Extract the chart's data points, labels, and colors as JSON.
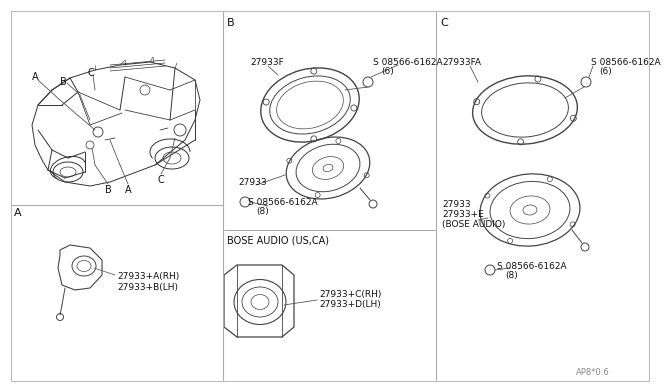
{
  "bg_color": "#ffffff",
  "line_color": "#444444",
  "text_color": "#111111",
  "title_bottom": "AP8*0.6",
  "section_bg": "#f8f8f8",
  "div_color": "#999999",
  "part_labels": {
    "part_A_RH": "27933+A(RH)",
    "part_A_LH": "27933+B(LH)",
    "part_B_frame": "27933F",
    "part_B_screw1_a": "S 08566-6162A",
    "part_B_screw1_b": "(6)",
    "part_B_speaker": "27933",
    "part_B_screw2_a": "S 08566-6162A",
    "part_B_screw2_b": "(8)",
    "part_B_bose_label": "BOSE AUDIO (US,CA)",
    "part_B_bose_rh": "27933+C(RH)",
    "part_B_bose_lh": "27933+D(LH)",
    "part_C_frame": "27933FA",
    "part_C_screw1_a": "S 08566-6162A",
    "part_C_screw1_b": "(6)",
    "part_C_speaker1": "27933",
    "part_C_speaker2": "27933+E",
    "part_C_speaker2b": "(BOSE AUDIO)",
    "part_C_screw2_a": "S 08566-6162A",
    "part_C_screw2_b": "(8)"
  },
  "section_labels": {
    "A": "A",
    "B": "B",
    "C": "C"
  },
  "car_label_A1": "A",
  "car_label_A2": "A",
  "car_label_B1": "B",
  "car_label_B2": "B",
  "car_label_C1": "C",
  "car_label_C2": "C"
}
